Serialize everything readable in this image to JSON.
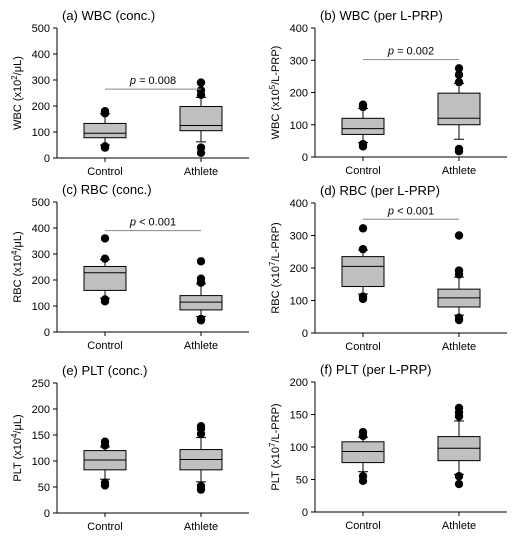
{
  "chart_data": [
    {
      "type": "box",
      "title": "(a) WBC (conc.)",
      "ylabel_parts": [
        "WBC (x10",
        "2",
        "/μL)"
      ],
      "ylim": [
        0,
        500
      ],
      "yticks": [
        "0",
        "100",
        "200",
        "300",
        "400",
        "500"
      ],
      "categories": [
        "Control",
        "Athlete"
      ],
      "boxes": [
        {
          "whisker_low": 50,
          "q1": 78,
          "median": 95,
          "q3": 133,
          "whisker_high": 170,
          "outliers": [
            40,
            45,
            172,
            180
          ]
        },
        {
          "whisker_low": 62,
          "q1": 105,
          "median": 125,
          "q3": 198,
          "whisker_high": 233,
          "outliers": [
            20,
            40,
            243,
            260,
            290
          ]
        }
      ],
      "annotation": {
        "label": "p",
        "value": " = 0.008",
        "y": 265
      }
    },
    {
      "type": "box",
      "title": "(b) WBC (per L-PRP)",
      "ylabel_parts": [
        "WBC (x10",
        "5",
        "/L-PRP)"
      ],
      "ylim": [
        0,
        400
      ],
      "yticks": [
        "0",
        "100",
        "200",
        "300",
        "400"
      ],
      "categories": [
        "Control",
        "Athlete"
      ],
      "boxes": [
        {
          "whisker_low": 45,
          "q1": 70,
          "median": 88,
          "q3": 120,
          "whisker_high": 150,
          "outliers": [
            33,
            40,
            155,
            162
          ]
        },
        {
          "whisker_low": 55,
          "q1": 100,
          "median": 120,
          "q3": 198,
          "whisker_high": 228,
          "outliers": [
            18,
            25,
            232,
            255,
            275
          ]
        }
      ],
      "annotation": {
        "label": "p",
        "value": " = 0.002",
        "y": 302
      }
    },
    {
      "type": "box",
      "title": "(c) RBC (conc.)",
      "ylabel_parts": [
        "RBC (x10",
        "4",
        "/μL)"
      ],
      "ylim": [
        0,
        500
      ],
      "yticks": [
        "0",
        "100",
        "200",
        "300",
        "400",
        "500"
      ],
      "categories": [
        "Control",
        "Athlete"
      ],
      "boxes": [
        {
          "whisker_low": 130,
          "q1": 160,
          "median": 228,
          "q3": 252,
          "whisker_high": 278,
          "outliers": [
            118,
            125,
            282,
            360
          ]
        },
        {
          "whisker_low": 60,
          "q1": 85,
          "median": 115,
          "q3": 140,
          "whisker_high": 185,
          "outliers": [
            45,
            50,
            190,
            205,
            272
          ]
        }
      ],
      "annotation": {
        "label": "p",
        "value": " < 0.001",
        "y": 390
      }
    },
    {
      "type": "box",
      "title": "(d) RBC (per L-PRP)",
      "ylabel_parts": [
        "RBC (x10",
        "7",
        "/L-PRP)"
      ],
      "ylim": [
        0,
        400
      ],
      "yticks": [
        "0",
        "100",
        "200",
        "300",
        "400"
      ],
      "categories": [
        "Control",
        "Athlete"
      ],
      "boxes": [
        {
          "whisker_low": 120,
          "q1": 143,
          "median": 205,
          "q3": 235,
          "whisker_high": 255,
          "outliers": [
            105,
            112,
            258,
            322
          ]
        },
        {
          "whisker_low": 55,
          "q1": 80,
          "median": 108,
          "q3": 135,
          "whisker_high": 172,
          "outliers": [
            40,
            47,
            180,
            192,
            300
          ]
        }
      ],
      "annotation": {
        "label": "p",
        "value": " < 0.001",
        "y": 350
      }
    },
    {
      "type": "box",
      "title": "(e) PLT (conc.)",
      "ylabel_parts": [
        "PLT (x10",
        "4",
        "/μL)"
      ],
      "ylim": [
        0,
        250
      ],
      "yticks": [
        "0",
        "50",
        "100",
        "150",
        "200",
        "250"
      ],
      "categories": [
        "Control",
        "Athlete"
      ],
      "boxes": [
        {
          "whisker_low": 65,
          "q1": 83,
          "median": 102,
          "q3": 120,
          "whisker_high": 127,
          "outliers": [
            53,
            58,
            130,
            137
          ]
        },
        {
          "whisker_low": 60,
          "q1": 83,
          "median": 103,
          "q3": 122,
          "whisker_high": 145,
          "outliers": [
            45,
            52,
            152,
            162,
            167
          ]
        }
      ]
    },
    {
      "type": "box",
      "title": "(f) PLT (per L-PRP)",
      "ylabel_parts": [
        "PLT (x10",
        "7",
        "/L-PRP)"
      ],
      "ylim": [
        0,
        200
      ],
      "yticks": [
        "0",
        "50",
        "100",
        "150",
        "200"
      ],
      "categories": [
        "Control",
        "Athlete"
      ],
      "boxes": [
        {
          "whisker_low": 62,
          "q1": 76,
          "median": 93,
          "q3": 108,
          "whisker_high": 115,
          "outliers": [
            48,
            55,
            117,
            123
          ]
        },
        {
          "whisker_low": 58,
          "q1": 79,
          "median": 98,
          "q3": 116,
          "whisker_high": 140,
          "outliers": [
            43,
            55,
            147,
            153,
            160
          ]
        }
      ]
    }
  ]
}
